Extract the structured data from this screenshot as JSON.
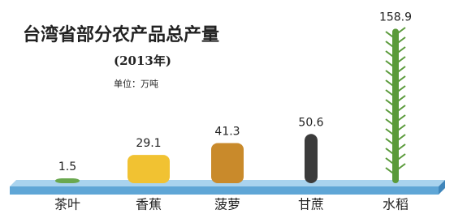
{
  "chart_data": {
    "type": "pictograph",
    "title": "台湾省部分农产品总产量",
    "subtitle": "(2013年)",
    "unit": "单位：万吨",
    "categories": [
      "茶叶",
      "香蕉",
      "菠萝",
      "甘蔗",
      "水稻"
    ],
    "values": [
      1.5,
      29.1,
      41.3,
      50.6,
      158.9
    ],
    "colors": [
      "#6aa84f",
      "#f1c232",
      "#c98a2b",
      "#3b3b3b",
      "#5a9a3a"
    ]
  }
}
